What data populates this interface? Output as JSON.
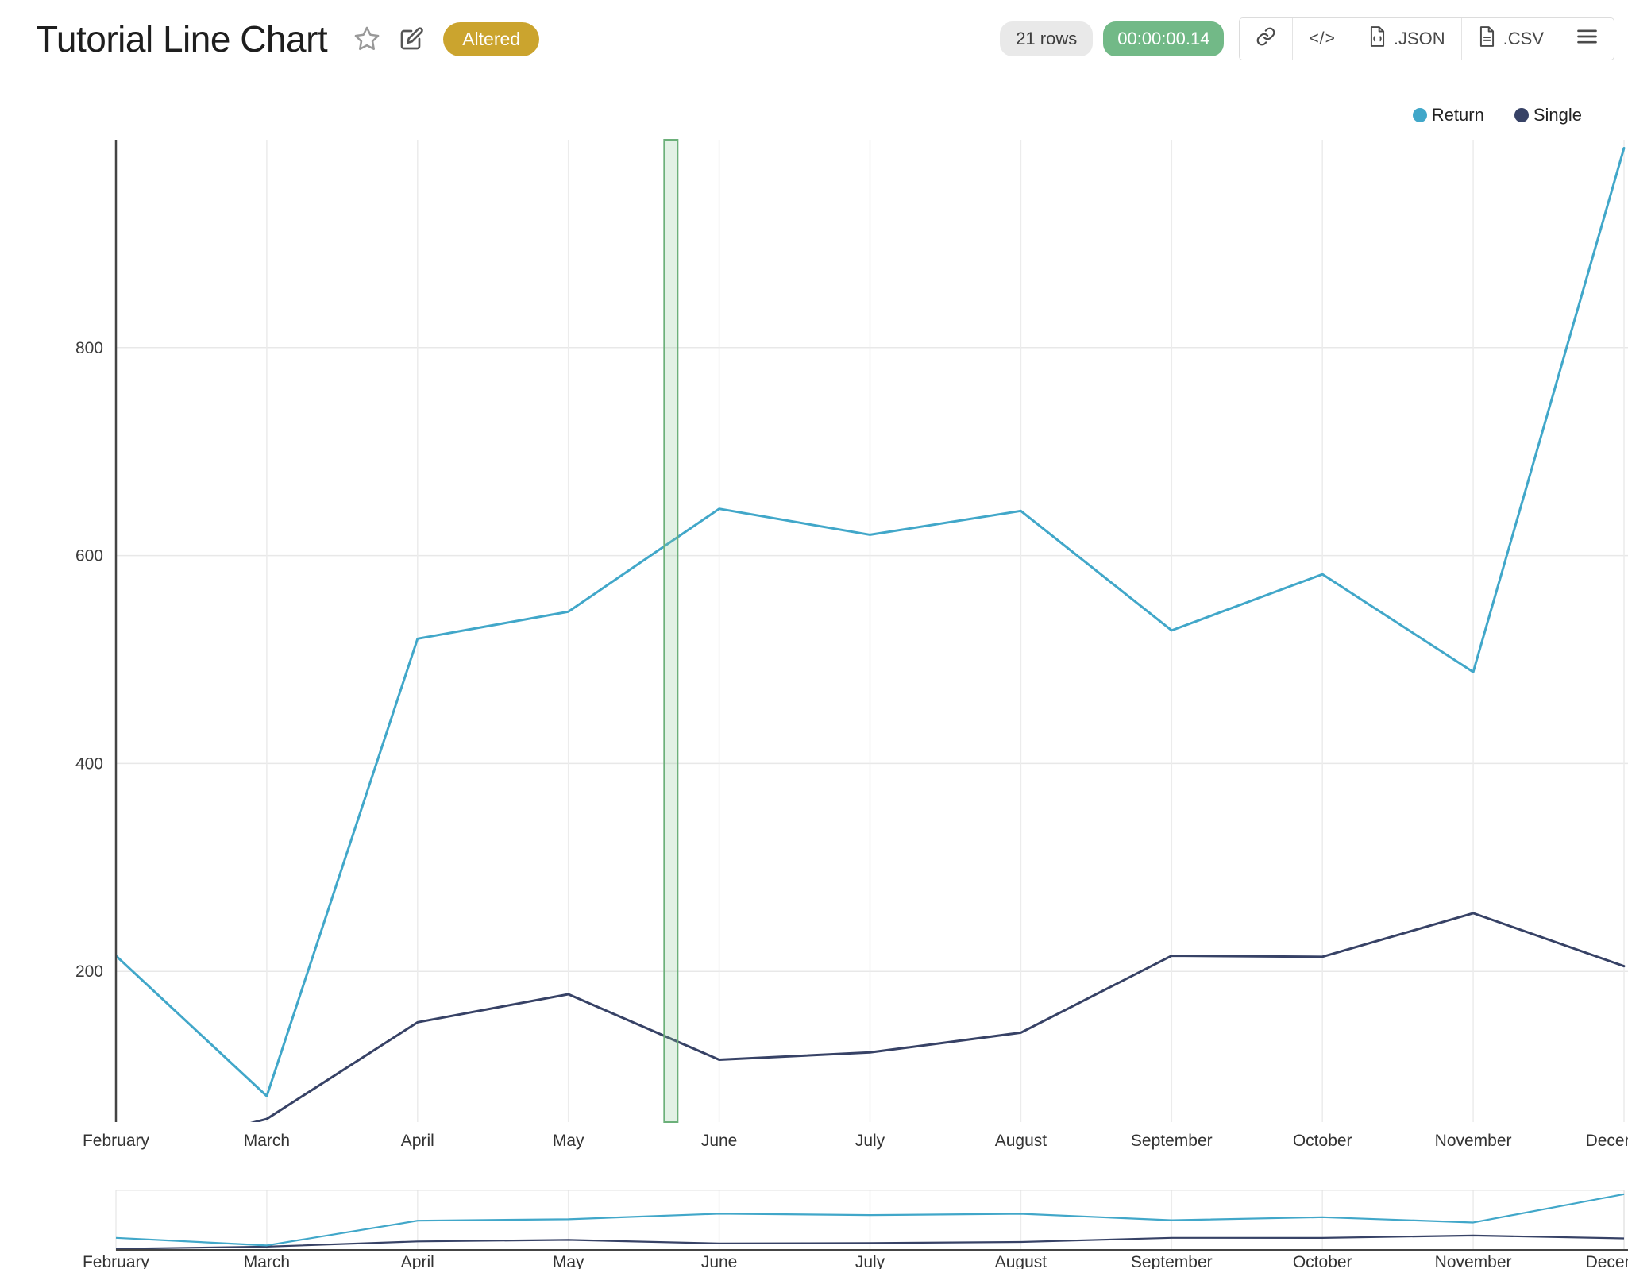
{
  "header": {
    "title": "Tutorial Line Chart",
    "altered_badge": "Altered"
  },
  "toolbar": {
    "rows_badge": "21 rows",
    "timer_badge": "00:00:00.14",
    "embed_label": "</>",
    "json_label": ".JSON",
    "csv_label": ".CSV"
  },
  "icons": {
    "favorite": "star-outline",
    "edit": "pencil-square",
    "share": "chain-link",
    "embed": "code-brackets",
    "download_json": "file-document",
    "download_csv": "file-document",
    "menu": "hamburger"
  },
  "colors": {
    "accent_altered": "#cba42e",
    "timer_green": "#72b987",
    "grid": "#ececec",
    "axis": "#444444",
    "selection_fill": "rgba(140,200,150,0.25)",
    "selection_border": "#6cb07a"
  },
  "chart_data": {
    "type": "line",
    "title": "Tutorial Line Chart",
    "categories": [
      "February",
      "March",
      "April",
      "May",
      "June",
      "July",
      "August",
      "September",
      "October",
      "November",
      "December"
    ],
    "series": [
      {
        "name": "Return",
        "color": "#41a7c9",
        "values": [
          215,
          80,
          520,
          546,
          645,
          620,
          643,
          528,
          582,
          488,
          992
        ]
      },
      {
        "name": "Single",
        "color": "#374266",
        "values": [
          20,
          58,
          151,
          178,
          115,
          122,
          141,
          215,
          214,
          256,
          205
        ]
      }
    ],
    "xlabel": "",
    "ylabel": "",
    "yticks": [
      200,
      400,
      600,
      800
    ],
    "ylim": [
      55,
      1000
    ],
    "grid": true,
    "legend_position": "top-right",
    "range_slider": true,
    "selection_band": {
      "between": [
        "May",
        "June"
      ],
      "position": 3.68,
      "width": 17
    }
  }
}
